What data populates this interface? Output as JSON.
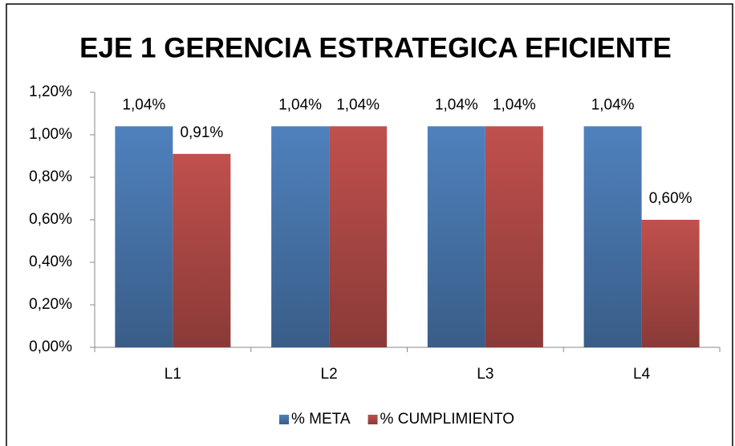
{
  "chart_data": {
    "type": "bar",
    "title": "EJE 1 GERENCIA ESTRATEGICA EFICIENTE",
    "categories": [
      "L1",
      "L2",
      "L3",
      "L4"
    ],
    "series": [
      {
        "name": "% META",
        "color": "#4f81bd",
        "values": [
          1.04,
          1.04,
          1.04,
          1.04
        ],
        "value_labels": [
          "1,04%",
          "1,04%",
          "1,04%",
          "1,04%"
        ]
      },
      {
        "name": "% CUMPLIMIENTO",
        "color": "#c0504d",
        "values": [
          0.91,
          1.04,
          1.04,
          0.6
        ],
        "value_labels": [
          "0,91%",
          "1,04%",
          "1,04%",
          "0,60%"
        ]
      }
    ],
    "ylim": [
      0,
      1.2
    ],
    "yticks": [
      {
        "value": 0,
        "label": "0,00%"
      },
      {
        "value": 0.2,
        "label": "0,20%"
      },
      {
        "value": 0.4,
        "label": "0,40%"
      },
      {
        "value": 0.6,
        "label": "0,60%"
      },
      {
        "value": 0.8,
        "label": "0,80%"
      },
      {
        "value": 1.0,
        "label": "1,00%"
      },
      {
        "value": 1.2,
        "label": "1,20%"
      }
    ],
    "grid": false,
    "legend": "bottom"
  }
}
